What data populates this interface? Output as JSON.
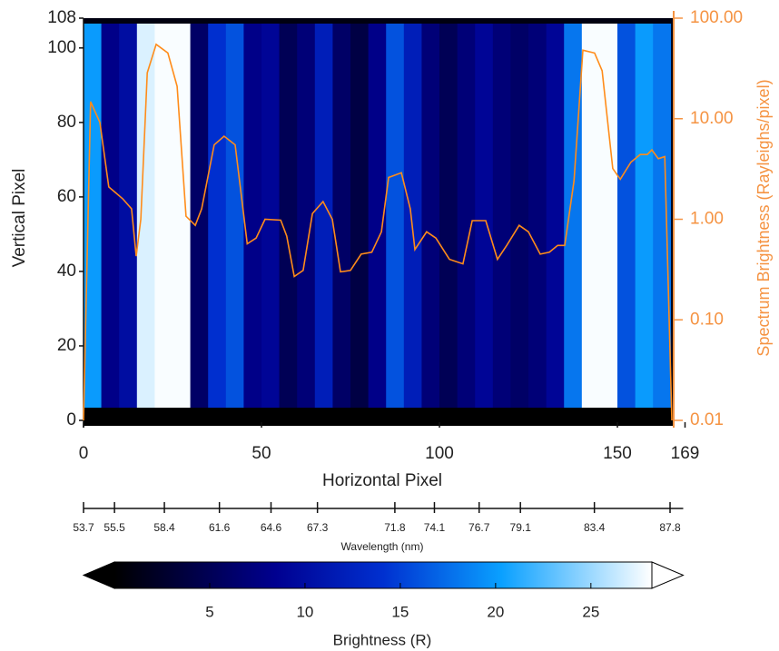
{
  "chart_data": {
    "type": "heatmap",
    "xlabel": "Horizontal Pixel",
    "ylabel": "Vertical Pixel",
    "y2label": "Spectrum Brightness (Rayleighs/pixel)",
    "xlim": [
      0,
      169
    ],
    "xticks": [
      0,
      50,
      100,
      150,
      169
    ],
    "ylim": [
      0,
      108
    ],
    "yticks": [
      0,
      20,
      40,
      60,
      80,
      100,
      108
    ],
    "y2lim": [
      0.01,
      100
    ],
    "y2log": true,
    "y2ticks": [
      {
        "value": 0.01,
        "label": "0.01"
      },
      {
        "value": 0.1,
        "label": "0.10"
      },
      {
        "value": 1,
        "label": "1.00"
      },
      {
        "value": 10,
        "label": "10.00"
      },
      {
        "value": 100,
        "label": "100.00"
      }
    ],
    "y2color": "#f59342",
    "heat": {
      "bins": [
        0,
        5,
        10,
        15,
        20,
        25,
        30,
        35,
        40,
        45,
        50,
        55,
        60,
        65,
        70,
        75,
        80,
        85,
        90,
        95,
        100,
        105,
        110,
        115,
        120,
        125,
        130,
        135,
        140,
        145,
        150,
        155,
        160,
        165
      ],
      "values": [
        20,
        8,
        10,
        27,
        28,
        28,
        6,
        14,
        16,
        8,
        9,
        5,
        7,
        12,
        6,
        4,
        8,
        16,
        12,
        7,
        5,
        7,
        9,
        7,
        6,
        7,
        9,
        18,
        28,
        28,
        16,
        20,
        18
      ]
    },
    "series": [
      {
        "color": "#ff8c1a",
        "axis": "y2",
        "x": [
          0,
          2.0,
          4.6,
          7.1,
          11,
          13.5,
          14.8,
          16.1,
          17.9,
          20.4,
          23.7,
          26.3,
          28.8,
          31.4,
          33.2,
          36.7,
          39.5,
          42.6,
          46,
          48.5,
          51,
          55.4,
          57.1,
          59.2,
          61.7,
          64.3,
          67.3,
          69.9,
          72.2,
          75,
          78,
          81,
          83.7,
          85.7,
          89.3,
          91.8,
          93.1,
          96.4,
          99,
          102.8,
          106.6,
          109.2,
          113,
          116.3,
          118.9,
          122.4,
          125,
          128.3,
          130.9,
          133.2,
          135.2,
          137.8,
          140.3,
          143.6,
          145.7,
          148.7,
          150.8,
          153.8,
          156.4,
          158.4,
          159.7,
          161.5,
          163.3,
          165.3
        ],
        "values": [
          0.01,
          14.8,
          9.2,
          2.1,
          1.6,
          1.27,
          0.43,
          1.0,
          28.6,
          55,
          45,
          21,
          1.07,
          0.87,
          1.27,
          5.5,
          6.7,
          5.5,
          0.57,
          0.65,
          1.0,
          0.98,
          0.68,
          0.27,
          0.31,
          1.14,
          1.5,
          1.0,
          0.3,
          0.31,
          0.45,
          0.47,
          0.75,
          2.6,
          2.9,
          1.27,
          0.5,
          0.75,
          0.65,
          0.4,
          0.36,
          0.97,
          0.97,
          0.4,
          0.55,
          0.87,
          0.75,
          0.45,
          0.47,
          0.55,
          0.55,
          2.4,
          48,
          45,
          30,
          3.2,
          2.5,
          3.7,
          4.4,
          4.4,
          4.9,
          4.0,
          4.2,
          0.01
        ]
      }
    ],
    "wavelength_axis": {
      "label": "Wavelength (nm)",
      "lim": [
        53.7,
        88.67
      ],
      "ticks": [
        53.7,
        55.5,
        58.4,
        61.6,
        64.6,
        67.3,
        71.8,
        74.1,
        76.7,
        79.1,
        83.4,
        87.8
      ]
    },
    "colorbar": {
      "label": "Brightness (R)",
      "lim": [
        0,
        28.2
      ],
      "ticks": [
        5,
        10,
        15,
        20,
        25
      ]
    }
  }
}
